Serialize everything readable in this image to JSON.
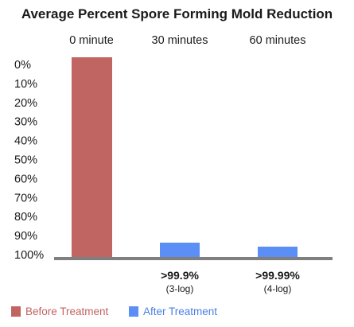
{
  "chart_data": {
    "type": "bar",
    "title": "Average Percent Spore Forming Mold Reduction",
    "categories": [
      "0 minute",
      "30 minutes",
      "60 minutes"
    ],
    "y_axis": {
      "ticks": [
        "0%",
        "10%",
        "20%",
        "30%",
        "40%",
        "50%",
        "60%",
        "70%",
        "80%",
        "90%",
        "100%"
      ],
      "inverted": true,
      "ylim": [
        100,
        0
      ]
    },
    "series": [
      {
        "name": "Before Treatment",
        "color": "#c06562",
        "values": [
          100,
          null,
          null
        ]
      },
      {
        "name": "After Treatment",
        "color": "#5b8ff6",
        "values": [
          null,
          99.9,
          99.99
        ]
      }
    ],
    "bar_annotations": [
      null,
      {
        "value": ">99.9%",
        "note": "(3-log)"
      },
      {
        "value": ">99.99%",
        "note": "(4-log)"
      }
    ],
    "legend_position": "bottom-left",
    "grid": false
  }
}
